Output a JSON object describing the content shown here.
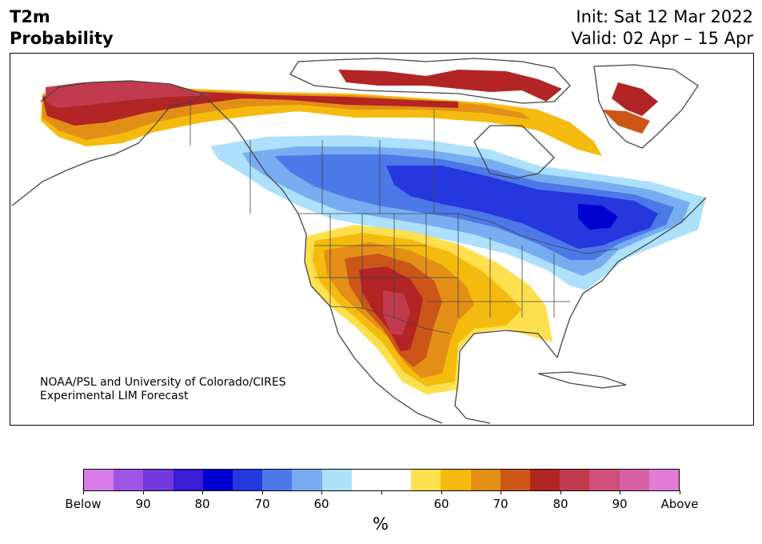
{
  "header": {
    "title_line1": "T2m",
    "title_line2": "Probability",
    "init": "Init: Sat 12 Mar 2022",
    "valid": "Valid: 02 Apr – 15 Apr"
  },
  "map": {
    "credit_line1": "NOAA/PSL and University of Colorado/CIRES",
    "credit_line2": "Experimental LIM Forecast",
    "region": "North America",
    "coastline_color": "#444444",
    "warm_regions": [
      "Alaska",
      "northern Canada / Arctic islands",
      "Southwest US",
      "Southern Plains",
      "Texas",
      "northern Mexico",
      "Gulf Coast"
    ],
    "cold_regions": [
      "western Canada",
      "central Canada",
      "Hudson Bay",
      "Great Lakes",
      "Northeast US",
      "Quebec"
    ]
  },
  "colorbar": {
    "colors": [
      "#d97bea",
      "#9e54e3",
      "#7038dc",
      "#3a1ed6",
      "#0000d0",
      "#2438de",
      "#4d78e8",
      "#77adf0",
      "#ace0fb",
      "#ffffff",
      "#ffffff",
      "#fee04e",
      "#f4bb0e",
      "#e38f17",
      "#cc5618",
      "#b32424",
      "#c23a4e",
      "#cf4f78",
      "#d961a6",
      "#e27bd9"
    ],
    "labels": [
      "Below",
      "90",
      "80",
      "70",
      "60",
      "",
      "60",
      "70",
      "80",
      "90",
      "Above"
    ],
    "unit": "%"
  }
}
